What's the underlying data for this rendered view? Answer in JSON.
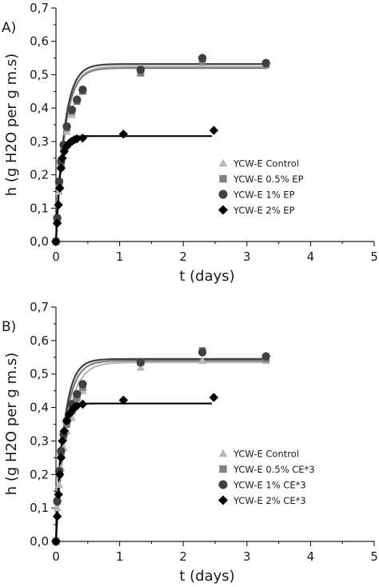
{
  "chart_data": [
    {
      "type": "scatter",
      "panel_label": "A)",
      "xlabel": "t (days)",
      "ylabel": "h (g H2O per g m.s)",
      "xlim": [
        0,
        5
      ],
      "ylim": [
        0,
        0.7
      ],
      "xticks": [
        "0",
        "1",
        "2",
        "3",
        "4",
        "5"
      ],
      "yticks": [
        "0,0",
        "0,1",
        "0,2",
        "0,3",
        "0,4",
        "0,5",
        "0,6",
        "0,7"
      ],
      "legend_position": "center-right",
      "series": [
        {
          "name": "YCW-E  Control",
          "marker": "triangle",
          "color": "#b8b8b8",
          "fit_asymptote": 0.525,
          "fit_rate": 7.0,
          "x": [
            0,
            0.02,
            0.05,
            0.08,
            0.12,
            0.17,
            0.25,
            0.33,
            0.42,
            1.33,
            2.3,
            3.3
          ],
          "y": [
            0,
            0.06,
            0.15,
            0.22,
            0.27,
            0.33,
            0.38,
            0.43,
            0.45,
            0.52,
            0.535,
            0.53
          ]
        },
        {
          "name": "YCW-E  0.5% EP",
          "marker": "square",
          "color": "#808080",
          "fit_asymptote": 0.52,
          "fit_rate": 7.2,
          "x": [
            0,
            0.02,
            0.05,
            0.08,
            0.12,
            0.17,
            0.25,
            0.33,
            0.42,
            1.33,
            2.3,
            3.3
          ],
          "y": [
            0,
            0.07,
            0.17,
            0.23,
            0.28,
            0.34,
            0.39,
            0.42,
            0.45,
            0.505,
            0.54,
            0.53
          ]
        },
        {
          "name": "YCW-E  1% EP",
          "marker": "circle",
          "color": "#404040",
          "fit_asymptote": 0.532,
          "fit_rate": 7.5,
          "x": [
            0,
            0.02,
            0.05,
            0.08,
            0.12,
            0.17,
            0.25,
            0.33,
            0.42,
            1.33,
            2.3,
            3.3
          ],
          "y": [
            0,
            0.07,
            0.18,
            0.24,
            0.29,
            0.345,
            0.395,
            0.425,
            0.455,
            0.515,
            0.55,
            0.535
          ]
        },
        {
          "name": "YCW-E  2% EP",
          "marker": "diamond",
          "color": "#000000",
          "fit_asymptote": 0.316,
          "fit_rate": 16,
          "fit_end": 2.45,
          "x": [
            0,
            0.02,
            0.04,
            0.06,
            0.08,
            0.1,
            0.13,
            0.17,
            0.21,
            0.25,
            0.29,
            0.33,
            0.42,
            1.06,
            2.48
          ],
          "y": [
            0,
            0.055,
            0.11,
            0.16,
            0.22,
            0.25,
            0.27,
            0.285,
            0.295,
            0.3,
            0.305,
            0.308,
            0.31,
            0.322,
            0.333
          ]
        }
      ]
    },
    {
      "type": "scatter",
      "panel_label": "B)",
      "xlabel": "t (days)",
      "ylabel": "h (g H2O per g m.s)",
      "xlim": [
        0,
        5
      ],
      "ylim": [
        0,
        0.7
      ],
      "xticks": [
        "0",
        "1",
        "2",
        "3",
        "4",
        "5"
      ],
      "yticks": [
        "0,0",
        "0,1",
        "0,2",
        "0,3",
        "0,4",
        "0,5",
        "0,6",
        "0,7"
      ],
      "legend_position": "center-right",
      "series": [
        {
          "name": "YCW-E  Control",
          "marker": "triangle",
          "color": "#b8b8b8",
          "fit_asymptote": 0.535,
          "fit_rate": 6.0,
          "x": [
            0,
            0.02,
            0.05,
            0.08,
            0.12,
            0.17,
            0.25,
            0.33,
            0.42,
            1.33,
            2.3,
            3.3
          ],
          "y": [
            0,
            0.1,
            0.17,
            0.22,
            0.28,
            0.33,
            0.37,
            0.42,
            0.45,
            0.52,
            0.54,
            0.54
          ]
        },
        {
          "name": "YCW-E  0.5% CE*3",
          "marker": "square",
          "color": "#808080",
          "fit_asymptote": 0.54,
          "fit_rate": 7.0,
          "x": [
            0,
            0.02,
            0.05,
            0.08,
            0.12,
            0.17,
            0.25,
            0.33,
            0.42,
            1.33,
            2.3,
            3.3
          ],
          "y": [
            0,
            0.12,
            0.2,
            0.26,
            0.31,
            0.35,
            0.39,
            0.43,
            0.46,
            0.535,
            0.57,
            0.545
          ]
        },
        {
          "name": "YCW-E  1% CE*3",
          "marker": "circle",
          "color": "#404040",
          "fit_asymptote": 0.545,
          "fit_rate": 7.8,
          "x": [
            0,
            0.02,
            0.05,
            0.08,
            0.12,
            0.17,
            0.25,
            0.33,
            0.42,
            1.33,
            2.3,
            3.3
          ],
          "y": [
            0,
            0.12,
            0.21,
            0.27,
            0.32,
            0.36,
            0.41,
            0.44,
            0.47,
            0.535,
            0.565,
            0.553
          ]
        },
        {
          "name": "YCW-E  2% CE*3",
          "marker": "diamond",
          "color": "#000000",
          "fit_asymptote": 0.412,
          "fit_rate": 14,
          "fit_end": 2.45,
          "x": [
            0,
            0.02,
            0.04,
            0.06,
            0.08,
            0.1,
            0.13,
            0.17,
            0.21,
            0.25,
            0.29,
            0.33,
            0.42,
            1.06,
            2.48
          ],
          "y": [
            0,
            0.075,
            0.14,
            0.2,
            0.25,
            0.3,
            0.33,
            0.36,
            0.38,
            0.39,
            0.4,
            0.405,
            0.41,
            0.422,
            0.43
          ]
        }
      ]
    }
  ]
}
